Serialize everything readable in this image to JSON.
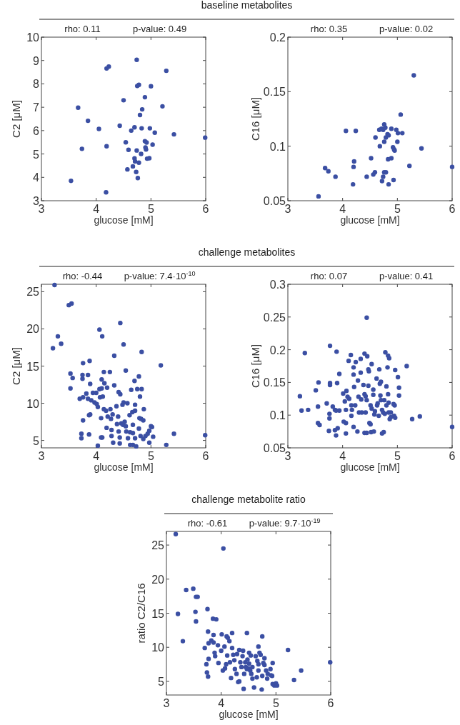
{
  "chart_data": [
    {
      "type": "scatter",
      "title": "baseline metabolites",
      "xlabel": "glucose [mM]",
      "ylabel": "C2 [μM]",
      "annotations": [
        "rho: 0.11",
        "p-value: 0.49"
      ],
      "xlim": [
        3,
        6
      ],
      "xticks": [
        3,
        4,
        5,
        6
      ],
      "ylim": [
        3,
        10
      ],
      "yticks": [
        3,
        4,
        5,
        6,
        7,
        8,
        9,
        10
      ],
      "marker": "circle",
      "series": [
        {
          "color": "#3b4fa3",
          "x": [
            3.54,
            3.67,
            3.74,
            3.85,
            4.05,
            4.18,
            4.19,
            4.23,
            4.19,
            4.43,
            4.5,
            4.54,
            4.57,
            4.59,
            4.64,
            4.67,
            4.7,
            4.7,
            4.71,
            4.73,
            4.74,
            4.74,
            4.75,
            4.78,
            4.76,
            4.78,
            4.8,
            4.82,
            4.83,
            4.84,
            4.89,
            4.89,
            4.92,
            4.9,
            4.91,
            4.93,
            4.97,
            4.98,
            5.0,
            5.03,
            5.07,
            5.21,
            5.28,
            5.42,
            5.99
          ],
          "values": [
            3.85,
            6.98,
            5.22,
            6.42,
            6.07,
            3.36,
            8.66,
            8.74,
            5.33,
            6.21,
            7.3,
            5.5,
            4.34,
            5.18,
            6.0,
            4.47,
            6.14,
            4.81,
            4.68,
            4.23,
            9.03,
            5.15,
            7.91,
            7.96,
            3.97,
            4.63,
            6.67,
            5.0,
            6.1,
            6.91,
            7.43,
            5.55,
            5.49,
            5.28,
            5.19,
            4.8,
            4.82,
            6.1,
            7.9,
            5.4,
            5.91,
            7.04,
            8.56,
            5.84,
            5.7
          ]
        }
      ]
    },
    {
      "type": "scatter",
      "xlabel": "glucose [mM]",
      "ylabel": "C16 [μM]",
      "annotations": [
        "rho: 0.35",
        "p-value: 0.02"
      ],
      "xlim": [
        3,
        6
      ],
      "xticks": [
        3,
        4,
        5,
        6
      ],
      "ylim": [
        0.05,
        0.2
      ],
      "yticks": [
        0.05,
        0.1,
        0.15,
        0.2
      ],
      "marker": "circle",
      "series": [
        {
          "color": "#3b4fa3",
          "x": [
            3.56,
            3.68,
            3.74,
            3.87,
            4.06,
            4.19,
            4.2,
            4.21,
            4.24,
            4.44,
            4.52,
            4.56,
            4.59,
            4.6,
            4.67,
            4.71,
            4.74,
            4.78,
            4.68,
            4.72,
            4.74,
            4.76,
            4.76,
            4.76,
            4.79,
            4.79,
            4.82,
            4.84,
            4.83,
            4.84,
            4.89,
            4.89,
            4.92,
            4.94,
            4.95,
            4.93,
            4.98,
            5.0,
            5.01,
            5.06,
            5.09,
            5.22,
            5.3,
            5.44,
            6.0
          ],
          "values": [
            0.054,
            0.08,
            0.077,
            0.072,
            0.114,
            0.065,
            0.081,
            0.086,
            0.114,
            0.072,
            0.089,
            0.074,
            0.076,
            0.108,
            0.115,
            0.116,
            0.115,
            0.117,
            0.1,
            0.068,
            0.072,
            0.12,
            0.104,
            0.076,
            0.076,
            0.108,
            0.111,
            0.11,
            0.088,
            0.065,
            0.116,
            0.089,
            0.099,
            0.097,
            0.096,
            0.069,
            0.115,
            0.104,
            0.112,
            0.129,
            0.112,
            0.082,
            0.165,
            0.098,
            0.081
          ]
        }
      ]
    },
    {
      "type": "scatter",
      "title": "challenge metabolites",
      "xlabel": "glucose [mM]",
      "ylabel": "C2 [μM]",
      "annotations": [
        "rho: -0.44",
        "p-value: 7.4·10$^{-10}$"
      ],
      "xlim": [
        3,
        6
      ],
      "xticks": [
        3,
        4,
        5,
        6
      ],
      "ylim": [
        4,
        26
      ],
      "yticks": [
        5,
        10,
        15,
        20,
        25
      ],
      "marker": "circle",
      "series": [
        {
          "color": "#3b4fa3",
          "x": [
            3.24,
            3.21,
            3.3,
            3.36,
            3.5,
            3.55,
            3.53,
            3.57,
            3.53,
            3.7,
            3.76,
            3.76,
            3.75,
            3.75,
            3.85,
            3.88,
            3.89,
            3.82,
            3.85,
            3.76,
            3.73,
            3.73,
            3.87,
            3.87,
            3.89,
            3.94,
            4.0,
            3.91,
            3.97,
            4.01,
            4.03,
            4.06,
            4.06,
            4.11,
            4.1,
            4.14,
            4.25,
            4.1,
            4.2,
            4.15,
            4.07,
            4.12,
            4.09,
            4.09,
            4.11,
            4.03,
            4.19,
            4.14,
            4.18,
            4.21,
            4.26,
            4.27,
            4.28,
            4.28,
            4.31,
            4.33,
            4.33,
            4.3,
            4.37,
            4.38,
            4.41,
            4.44,
            4.4,
            4.41,
            4.43,
            4.43,
            4.44,
            4.46,
            4.48,
            4.5,
            4.49,
            4.5,
            4.54,
            4.52,
            4.54,
            4.55,
            4.57,
            4.58,
            4.61,
            4.62,
            4.62,
            4.67,
            4.73,
            4.64,
            4.66,
            4.7,
            4.71,
            4.71,
            4.67,
            4.67,
            4.71,
            4.75,
            4.83,
            4.78,
            4.8,
            4.79,
            4.82,
            4.78,
            4.81,
            4.83,
            4.87,
            4.86,
            4.86,
            4.9,
            4.94,
            4.97,
            4.97,
            5.0,
            5.02,
            5.04,
            5.18,
            5.28,
            5.42,
            5.99
          ],
          "values": [
            25.9,
            17.4,
            19.0,
            18.0,
            23.2,
            23.4,
            14.0,
            13.4,
            12.0,
            10.6,
            10.8,
            15.4,
            13.3,
            13.8,
            13.8,
            15.7,
            12.6,
            11.3,
            10.6,
            7.7,
            5.9,
            5.3,
            5.8,
            8.4,
            8.5,
            11.4,
            11.4,
            10.4,
            10.1,
            9.9,
            9.5,
            11.9,
            19.9,
            19.0,
            13.2,
            14.2,
            14.2,
            12.0,
            12.1,
            12.7,
            10.8,
            10.9,
            8.0,
            5.4,
            5.4,
            4.3,
            6.7,
            9.2,
            9.0,
            8.2,
            9.2,
            7.9,
            6.4,
            5.6,
            4.7,
            16.4,
            12.4,
            8.5,
            9.6,
            7.2,
            11.5,
            11.2,
            8.2,
            6.2,
            5.4,
            4.6,
            20.8,
            7.3,
            9.8,
            10.1,
            7.1,
            17.9,
            14.4,
            7.5,
            6.9,
            6.2,
            10.0,
            5.3,
            8.4,
            6.1,
            4.4,
            4.4,
            4.2,
            11.8,
            8.8,
            13.0,
            9.8,
            9.0,
            7.1,
            6.0,
            5.3,
            11.9,
            11.9,
            13.6,
            10.9,
            8.0,
            7.9,
            6.6,
            5.6,
            16.9,
            9.2,
            7.7,
            5.2,
            5.6,
            5.9,
            6.3,
            4.7,
            6.9,
            6.8,
            5.5,
            15.1,
            4.4,
            5.9,
            5.7
          ]
        }
      ]
    },
    {
      "type": "scatter",
      "xlabel": "glucose [mM]",
      "ylabel": "C16 [μM]",
      "annotations": [
        "rho: 0.07",
        "p-value: 0.41"
      ],
      "xlim": [
        3,
        6
      ],
      "xticks": [
        3,
        4,
        5,
        6
      ],
      "ylim": [
        0.05,
        0.3
      ],
      "yticks": [
        0.05,
        0.1,
        0.15,
        0.2,
        0.25,
        0.3
      ],
      "marker": "circle",
      "series": [
        {
          "color": "#3b4fa3",
          "x": [
            3.22,
            3.25,
            3.31,
            3.37,
            3.51,
            3.56,
            3.55,
            3.55,
            3.58,
            3.71,
            3.75,
            3.76,
            3.76,
            3.77,
            3.77,
            3.77,
            3.82,
            3.86,
            3.88,
            3.94,
            3.86,
            3.88,
            3.89,
            3.9,
            3.91,
            3.94,
            4.01,
            4.04,
            4.06,
            4.02,
            4.06,
            4.06,
            4.07,
            4.09,
            4.12,
            4.11,
            4.15,
            4.16,
            4.17,
            4.16,
            4.2,
            4.2,
            4.2,
            4.23,
            4.24,
            4.21,
            4.27,
            4.28,
            4.29,
            4.3,
            4.33,
            4.33,
            4.34,
            4.35,
            4.38,
            4.4,
            4.4,
            4.42,
            4.4,
            4.44,
            4.42,
            4.44,
            4.45,
            4.44,
            4.47,
            4.48,
            4.47,
            4.49,
            4.51,
            4.51,
            4.53,
            4.52,
            4.53,
            4.56,
            4.56,
            4.57,
            4.58,
            4.59,
            4.62,
            4.63,
            4.64,
            4.66,
            4.67,
            4.68,
            4.7,
            4.69,
            4.7,
            4.72,
            4.75,
            4.72,
            4.74,
            4.77,
            4.76,
            4.8,
            4.78,
            4.8,
            4.82,
            4.83,
            4.83,
            4.85,
            4.84,
            4.84,
            4.86,
            4.88,
            4.88,
            4.93,
            4.95,
            4.94,
            4.96,
            4.96,
            5.01,
            5.03,
            5.03,
            5.17,
            5.27,
            5.41,
            6.0
          ],
          "values": [
            0.129,
            0.107,
            0.195,
            0.108,
            0.138,
            0.15,
            0.113,
            0.088,
            0.085,
            0.118,
            0.076,
            0.102,
            0.095,
            0.206,
            0.149,
            0.146,
            0.113,
            0.108,
            0.107,
            0.107,
            0.077,
            0.069,
            0.197,
            0.149,
            0.08,
            0.163,
            0.133,
            0.121,
            0.108,
            0.09,
            0.088,
            0.072,
            0.137,
            0.128,
            0.125,
            0.183,
            0.192,
            0.115,
            0.108,
            0.099,
            0.082,
            0.173,
            0.162,
            0.115,
            0.181,
            0.143,
            0.075,
            0.153,
            0.128,
            0.104,
            0.186,
            0.165,
            0.124,
            0.104,
            0.146,
            0.194,
            0.132,
            0.129,
            0.073,
            0.073,
            0.104,
            0.249,
            0.19,
            0.123,
            0.17,
            0.167,
            0.145,
            0.088,
            0.086,
            0.115,
            0.11,
            0.074,
            0.178,
            0.131,
            0.139,
            0.075,
            0.101,
            0.106,
            0.156,
            0.115,
            0.118,
            0.099,
            0.17,
            0.148,
            0.151,
            0.13,
            0.123,
            0.072,
            0.074,
            0.108,
            0.104,
            0.102,
            0.123,
            0.115,
            0.196,
            0.144,
            0.173,
            0.132,
            0.191,
            0.187,
            0.119,
            0.104,
            0.094,
            0.097,
            0.104,
            0.117,
            0.115,
            0.099,
            0.096,
            0.169,
            0.158,
            0.142,
            0.13,
            0.175,
            0.094,
            0.098,
            0.082
          ]
        }
      ]
    },
    {
      "type": "scatter",
      "title": "challenge metabolite ratio",
      "xlabel": "glucose [mM]",
      "ylabel": "ratio C2/C16",
      "annotations": [
        "rho: -0.61",
        "p-value: 9.7·10$^{-19}$"
      ],
      "xlim": [
        3,
        6
      ],
      "xticks": [
        3,
        4,
        5,
        6
      ],
      "ylim": [
        3,
        27
      ],
      "yticks": [
        5,
        10,
        15,
        20,
        25
      ],
      "marker": "circle",
      "series": [
        {
          "color": "#3b4fa3",
          "x": [
            3.17,
            3.21,
            3.3,
            3.36,
            3.49,
            3.54,
            3.57,
            3.53,
            3.54,
            3.7,
            3.75,
            3.73,
            3.74,
            3.76,
            3.76,
            3.77,
            3.77,
            3.82,
            3.85,
            3.91,
            3.86,
            3.86,
            3.88,
            3.89,
            3.94,
            3.95,
            4.0,
            4.01,
            4.04,
            4.03,
            4.07,
            4.06,
            4.1,
            4.12,
            4.11,
            4.09,
            4.15,
            4.16,
            4.18,
            4.2,
            4.2,
            4.22,
            4.24,
            4.25,
            4.28,
            4.29,
            4.31,
            4.33,
            4.33,
            4.35,
            4.37,
            4.39,
            4.4,
            4.41,
            4.42,
            4.44,
            4.45,
            4.47,
            4.5,
            4.53,
            4.47,
            4.48,
            4.51,
            4.51,
            4.54,
            4.55,
            4.57,
            4.57,
            4.6,
            4.63,
            4.65,
            4.66,
            4.68,
            4.68,
            4.68,
            4.7,
            4.72,
            4.74,
            4.75,
            4.75,
            4.77,
            4.79,
            4.79,
            4.82,
            4.85,
            4.84,
            4.9,
            4.91,
            4.94,
            4.94,
            4.97,
            5.0,
            5.02,
            4.93,
            5.22,
            5.33,
            5.46,
            5.99
          ],
          "values": [
            26.6,
            14.9,
            10.9,
            18.4,
            18.6,
            17.4,
            17.4,
            15.2,
            13.8,
            9.9,
            15.6,
            7.5,
            6.3,
            5.7,
            12.3,
            8.3,
            10.6,
            11.0,
            14.2,
            14.1,
            11.8,
            10.7,
            9.2,
            8.7,
            10.3,
            7.7,
            9.5,
            11.9,
            24.5,
            6.6,
            6.9,
            10.1,
            11.6,
            11.4,
            8.8,
            7.5,
            10.9,
            7.8,
            5.5,
            12.1,
            9.9,
            8.9,
            8.1,
            6.8,
            6.1,
            9.0,
            4.9,
            5.0,
            9.6,
            7.8,
            7.1,
            8.7,
            9.5,
            3.9,
            6.1,
            7.8,
            7.1,
            6.8,
            6.9,
            6.6,
            12.1,
            8.2,
            7.6,
            9.2,
            8.8,
            6.1,
            7.1,
            5.4,
            4.1,
            8.7,
            5.6,
            8.0,
            7.5,
            10.1,
            6.6,
            9.2,
            8.9,
            3.8,
            11.6,
            5.8,
            7.7,
            7.4,
            8.4,
            6.6,
            6.1,
            5.4,
            6.8,
            5.9,
            7.7,
            4.6,
            4.4,
            4.7,
            4.4,
            5.8,
            9.6,
            5.2,
            6.6,
            7.8
          ]
        }
      ]
    }
  ]
}
